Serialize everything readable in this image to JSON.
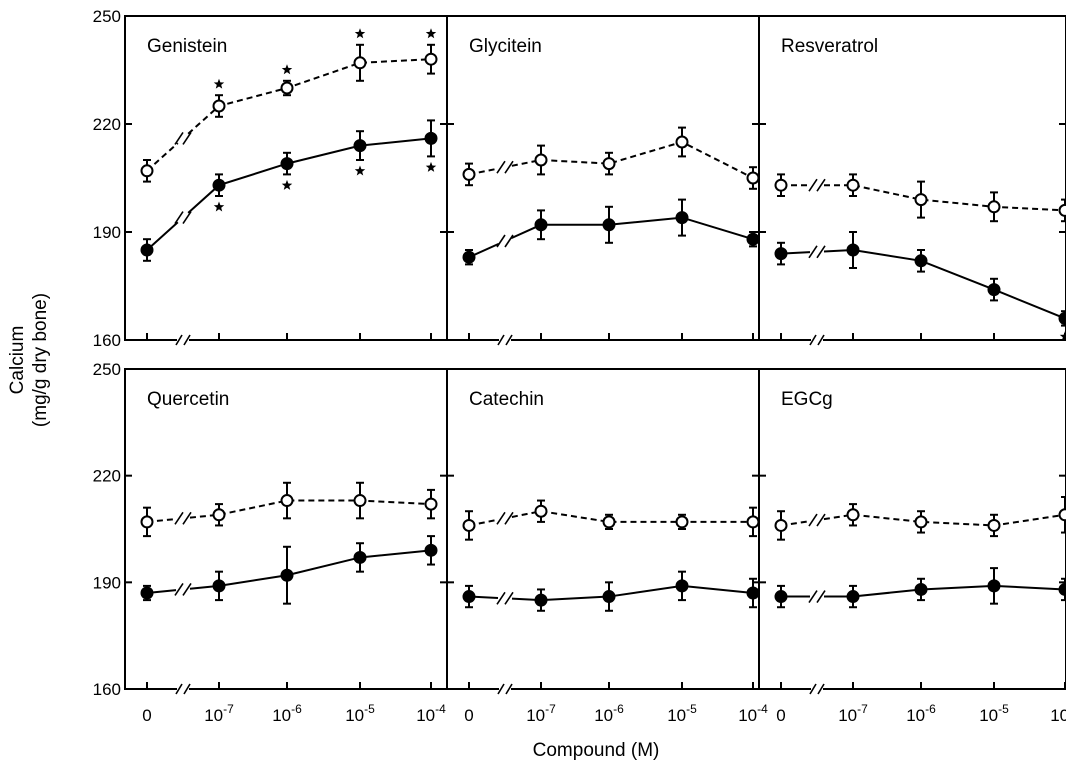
{
  "figure": {
    "ylabel_line1": "Calcium",
    "ylabel_line2": "(mg/g dry bone)",
    "xlabel": "Compound (M)"
  },
  "chart_data": {
    "type": "line",
    "x_categories": [
      "0",
      "10-7",
      "10-6",
      "10-5",
      "10-4"
    ],
    "x_tick_labels": [
      {
        "base": "0",
        "exp": ""
      },
      {
        "base": "10",
        "exp": "-7"
      },
      {
        "base": "10",
        "exp": "-6"
      },
      {
        "base": "10",
        "exp": "-5"
      },
      {
        "base": "10",
        "exp": "-4"
      }
    ],
    "ylim": [
      160,
      250
    ],
    "yticks": [
      160,
      190,
      220,
      250
    ],
    "axis_break_between": [
      "0",
      "10-7"
    ],
    "grid": false,
    "legend": "none",
    "panels": [
      {
        "title": "Genistein",
        "series": [
          {
            "style": "open-dashed",
            "values": [
              207,
              225,
              230,
              237,
              238
            ],
            "errors": [
              3,
              3,
              2,
              5,
              4
            ],
            "significant": [
              false,
              true,
              true,
              true,
              true
            ]
          },
          {
            "style": "filled-solid",
            "values": [
              185,
              203,
              209,
              214,
              216
            ],
            "errors": [
              3,
              3,
              3,
              4,
              5
            ],
            "significant": [
              false,
              true,
              true,
              true,
              true
            ]
          }
        ]
      },
      {
        "title": "Glycitein",
        "series": [
          {
            "style": "open-dashed",
            "values": [
              206,
              210,
              209,
              215,
              205
            ],
            "errors": [
              3,
              4,
              3,
              4,
              3
            ],
            "significant": [
              false,
              false,
              false,
              false,
              false
            ]
          },
          {
            "style": "filled-solid",
            "values": [
              183,
              192,
              192,
              194,
              188
            ],
            "errors": [
              2,
              4,
              5,
              5,
              2
            ],
            "significant": [
              false,
              false,
              false,
              false,
              false
            ]
          }
        ]
      },
      {
        "title": "Resveratrol",
        "series": [
          {
            "style": "open-dashed",
            "values": [
              203,
              203,
              199,
              197,
              196
            ],
            "errors": [
              3,
              3,
              5,
              4,
              3
            ],
            "significant": [
              false,
              false,
              false,
              false,
              false
            ]
          },
          {
            "style": "filled-solid",
            "values": [
              184,
              185,
              182,
              174,
              166
            ],
            "errors": [
              3,
              5,
              3,
              3,
              2
            ],
            "significant": [
              false,
              false,
              false,
              false,
              true
            ]
          }
        ]
      },
      {
        "title": "Quercetin",
        "series": [
          {
            "style": "open-dashed",
            "values": [
              207,
              209,
              213,
              213,
              212
            ],
            "errors": [
              4,
              3,
              5,
              5,
              4
            ],
            "significant": [
              false,
              false,
              false,
              false,
              false
            ]
          },
          {
            "style": "filled-solid",
            "values": [
              187,
              189,
              192,
              197,
              199
            ],
            "errors": [
              2,
              4,
              8,
              4,
              4
            ],
            "significant": [
              false,
              false,
              false,
              false,
              false
            ]
          }
        ]
      },
      {
        "title": "Catechin",
        "series": [
          {
            "style": "open-dashed",
            "values": [
              206,
              210,
              207,
              207,
              207
            ],
            "errors": [
              4,
              3,
              2,
              2,
              4
            ],
            "significant": [
              false,
              false,
              false,
              false,
              false
            ]
          },
          {
            "style": "filled-solid",
            "values": [
              186,
              185,
              186,
              189,
              187
            ],
            "errors": [
              3,
              3,
              4,
              4,
              4
            ],
            "significant": [
              false,
              false,
              false,
              false,
              false
            ]
          }
        ]
      },
      {
        "title": "EGCg",
        "series": [
          {
            "style": "open-dashed",
            "values": [
              206,
              209,
              207,
              206,
              209
            ],
            "errors": [
              4,
              3,
              3,
              3,
              5
            ],
            "significant": [
              false,
              false,
              false,
              false,
              false
            ]
          },
          {
            "style": "filled-solid",
            "values": [
              186,
              186,
              188,
              189,
              188
            ],
            "errors": [
              3,
              3,
              3,
              5,
              3
            ],
            "significant": [
              false,
              false,
              false,
              false,
              false
            ]
          }
        ]
      }
    ]
  }
}
